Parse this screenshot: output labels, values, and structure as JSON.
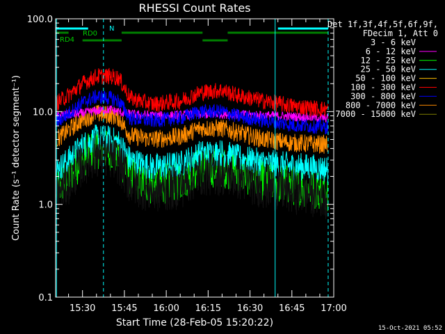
{
  "chart_data": {
    "type": "line",
    "title": "RHESSI Count Rates",
    "xlabel": "Start Time (28-Feb-05 15:20:22)",
    "ylabel": "Count Rate (s⁻¹ detector segment⁻¹)",
    "yscale": "log",
    "ylim": [
      0.1,
      100
    ],
    "y_ticks": [
      "0.1",
      "1.0",
      "10.0",
      "100.0"
    ],
    "xlim": [
      "15:20:22",
      "17:00:00"
    ],
    "x_ticks": [
      "15:30",
      "15:45",
      "16:00",
      "16:15",
      "16:30",
      "16:45",
      "17:00"
    ],
    "grid": false,
    "legend_position": "top-right",
    "legend_header": [
      "Det 1f,3f,4f,5f,6f,9f,",
      "FDecim 1, Att 0"
    ],
    "series": [
      {
        "name": "3 - 6 keV",
        "color": "#000000",
        "values": []
      },
      {
        "name": "6 - 12 keV",
        "color": "#ff00ff",
        "times": [
          "15:20",
          "15:30",
          "15:35",
          "15:40",
          "15:45",
          "15:50",
          "16:00",
          "16:10",
          "16:20",
          "16:30",
          "16:40",
          "16:50",
          "16:58"
        ],
        "values": [
          9.0,
          9.6,
          10.2,
          10.5,
          9.6,
          9.2,
          9.0,
          9.3,
          9.4,
          9.2,
          9.0,
          8.7,
          8.5
        ]
      },
      {
        "name": "12 - 25 keV",
        "color": "#00ff00",
        "times": [
          "15:20",
          "15:25",
          "15:30",
          "15:35",
          "15:40",
          "15:43",
          "15:47",
          "15:55",
          "16:05",
          "16:12",
          "16:20",
          "16:25",
          "16:35",
          "16:45",
          "16:58"
        ],
        "values": [
          1.4,
          2.0,
          3.2,
          4.0,
          3.8,
          3.3,
          2.0,
          1.6,
          1.8,
          2.5,
          2.5,
          2.3,
          1.8,
          1.6,
          1.4
        ]
      },
      {
        "name": "25 - 50 keV",
        "color": "#00ffff",
        "times": [
          "15:20",
          "15:25",
          "15:30",
          "15:35",
          "15:40",
          "15:43",
          "15:47",
          "15:55",
          "16:05",
          "16:12",
          "16:20",
          "16:25",
          "16:35",
          "16:45",
          "16:58"
        ],
        "values": [
          2.2,
          3.0,
          4.3,
          5.2,
          5.0,
          4.6,
          3.0,
          2.5,
          2.7,
          3.5,
          3.6,
          3.2,
          2.8,
          2.6,
          2.4
        ]
      },
      {
        "name": "50 - 100 keV",
        "color": "#ffbf00",
        "values": []
      },
      {
        "name": "100 - 300 keV",
        "color": "#ff0000",
        "times": [
          "15:20",
          "15:25",
          "15:30",
          "15:35",
          "15:40",
          "15:43",
          "15:47",
          "15:55",
          "16:05",
          "16:12",
          "16:20",
          "16:25",
          "16:35",
          "16:45",
          "16:58"
        ],
        "values": [
          12,
          15,
          20,
          24,
          24,
          23,
          14,
          12,
          13,
          16,
          17,
          15,
          13,
          11.5,
          10.5
        ]
      },
      {
        "name": "300 - 800 keV",
        "color": "#0000ff",
        "times": [
          "15:20",
          "15:25",
          "15:30",
          "15:35",
          "15:40",
          "15:43",
          "15:47",
          "15:55",
          "16:05",
          "16:12",
          "16:20",
          "16:25",
          "16:35",
          "16:45",
          "16:58"
        ],
        "values": [
          7.5,
          9.5,
          12.5,
          14.5,
          14,
          13,
          8.5,
          8.0,
          8.5,
          10,
          10,
          9.0,
          8.0,
          7.2,
          6.8
        ]
      },
      {
        "name": "800 - 7000 keV",
        "color": "#ff8c00",
        "times": [
          "15:20",
          "15:25",
          "15:30",
          "15:35",
          "15:40",
          "15:43",
          "15:47",
          "15:55",
          "16:05",
          "16:12",
          "16:20",
          "16:25",
          "16:35",
          "16:45",
          "16:58"
        ],
        "values": [
          4.8,
          6.3,
          8.2,
          9.5,
          9.2,
          8.6,
          5.5,
          5.0,
          5.4,
          6.6,
          6.6,
          6.0,
          5.0,
          4.6,
          4.4
        ]
      },
      {
        "name": "7000 - 15000 keV",
        "color": "#808000",
        "values": []
      }
    ],
    "annotations": {
      "attenuator_label": "RD0",
      "rate_decimation_label": "RD4",
      "night_label": "N"
    },
    "footer_timestamp": "15-Oct-2021 05:52"
  }
}
